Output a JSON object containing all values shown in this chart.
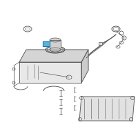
{
  "bg_color": "#ffffff",
  "line_color": "#555555",
  "highlight_color": "#4aa8d8",
  "fig_width": 2.0,
  "fig_height": 2.0,
  "dpi": 100
}
